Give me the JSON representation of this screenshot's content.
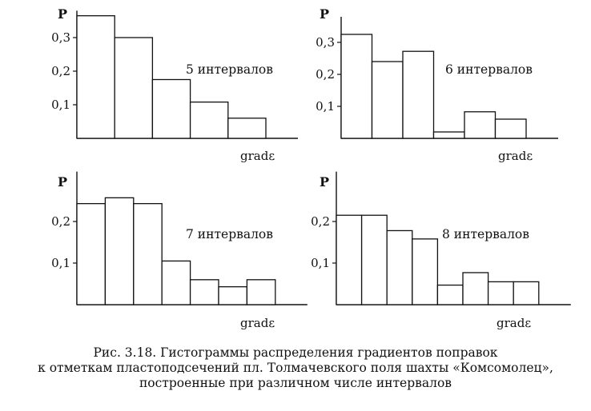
{
  "chart_data": [
    {
      "type": "bar",
      "ylabel": "P",
      "xlabel": "gradε",
      "annotation": "5 интервалов",
      "yticks": [
        "0,1",
        "0,2",
        "0,3"
      ],
      "ylim": [
        0,
        0.38
      ],
      "values": [
        0.365,
        0.3,
        0.175,
        0.108,
        0.06
      ]
    },
    {
      "type": "bar",
      "ylabel": "P",
      "xlabel": "gradε",
      "annotation": "6 интервалов",
      "yticks": [
        "0,1",
        "0,2",
        "0,3"
      ],
      "ylim": [
        0,
        0.38
      ],
      "values": [
        0.325,
        0.24,
        0.272,
        0.02,
        0.083,
        0.06
      ]
    },
    {
      "type": "bar",
      "ylabel": "P",
      "xlabel": "gradε",
      "annotation": "7 интервалов",
      "yticks": [
        "0,1",
        "0,2"
      ],
      "ylim": [
        0,
        0.32
      ],
      "values": [
        0.243,
        0.257,
        0.243,
        0.105,
        0.06,
        0.043,
        0.06
      ]
    },
    {
      "type": "bar",
      "ylabel": "P",
      "xlabel": "gradε",
      "annotation": "8 интервалов",
      "yticks": [
        "0,1",
        "0,2"
      ],
      "ylim": [
        0,
        0.32
      ],
      "values": [
        0.215,
        0.215,
        0.178,
        0.158,
        0.047,
        0.077,
        0.055,
        0.055
      ]
    }
  ],
  "caption": {
    "line1": "Рис. 3.18. Гистограммы распределения градиентов поправок",
    "line2": "к отметкам пластоподсечений пл. Толмачевского поля шахты «Комсомолец»,",
    "line3": "построенные при различном числе интервалов"
  }
}
